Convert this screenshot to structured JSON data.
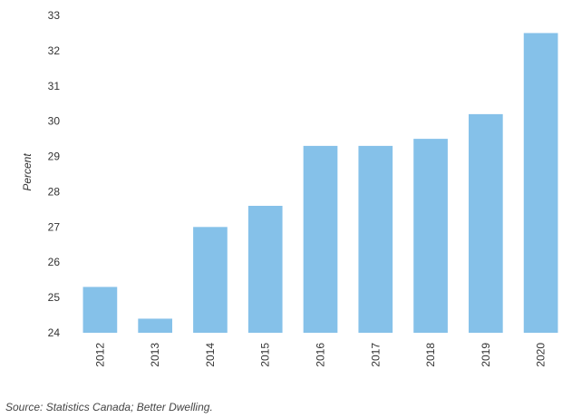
{
  "chart_data": {
    "type": "bar",
    "categories": [
      "2012",
      "2013",
      "2014",
      "2015",
      "2016",
      "2017",
      "2018",
      "2019",
      "2020"
    ],
    "values": [
      25.3,
      24.4,
      27.0,
      27.6,
      29.3,
      29.3,
      29.5,
      30.2,
      32.5
    ],
    "title": "",
    "xlabel": "",
    "ylabel": "Percent",
    "ylim": [
      24,
      33
    ],
    "yticks": [
      24,
      25,
      26,
      27,
      28,
      29,
      30,
      31,
      32,
      33
    ],
    "grid": false,
    "bar_color": "#85c1e9"
  },
  "source": "Source: Statistics Canada; Better Dwelling."
}
